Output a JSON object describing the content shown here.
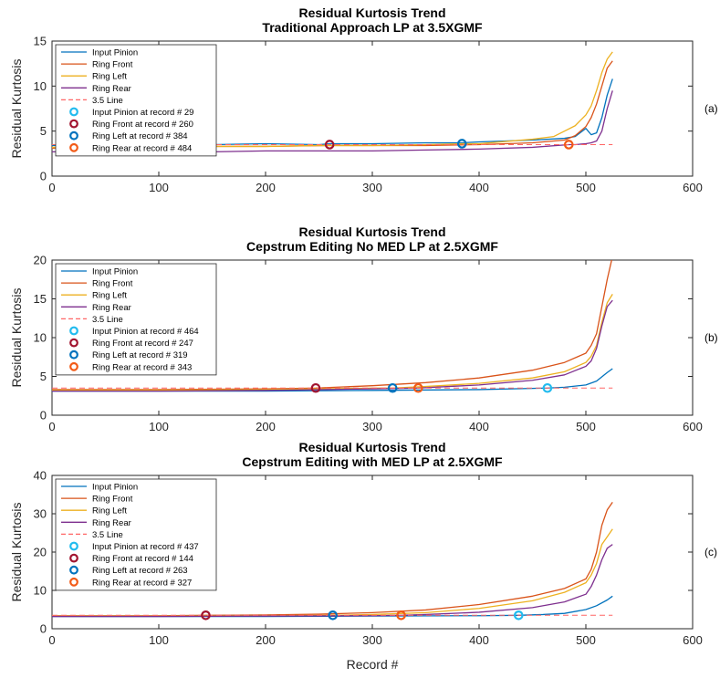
{
  "figure": {
    "xlabel": "Record #"
  },
  "chart_data": [
    {
      "type": "line",
      "panel_label": "(a)",
      "title": [
        "Residual Kurtosis Trend",
        "Traditional Approach LP at 3.5XGMF"
      ],
      "ylabel": "Residual Kurtosis",
      "xlim": [
        0,
        600
      ],
      "ylim": [
        0,
        15
      ],
      "xticks": [
        0,
        100,
        200,
        300,
        400,
        500,
        600
      ],
      "yticks": [
        0,
        5,
        10,
        15
      ],
      "grid": false,
      "legend_position": "top-left",
      "series": [
        {
          "name": "Input Pinion",
          "color": "#0072BD",
          "x": [
            0,
            29,
            60,
            100,
            150,
            200,
            250,
            260,
            300,
            350,
            384,
            400,
            450,
            480,
            490,
            500,
            505,
            510,
            515,
            520,
            525
          ],
          "y": [
            3.4,
            3.5,
            3.6,
            3.5,
            3.5,
            3.6,
            3.5,
            3.6,
            3.6,
            3.7,
            3.7,
            3.8,
            4.0,
            4.2,
            4.4,
            5.3,
            4.6,
            4.8,
            6.5,
            9.0,
            10.8
          ]
        },
        {
          "name": "Ring Front",
          "color": "#D95319",
          "x": [
            0,
            50,
            100,
            150,
            200,
            260,
            300,
            350,
            400,
            450,
            480,
            490,
            500,
            505,
            510,
            515,
            520,
            525
          ],
          "y": [
            3.1,
            3.2,
            3.2,
            3.3,
            3.3,
            3.4,
            3.4,
            3.4,
            3.5,
            3.7,
            4.0,
            4.5,
            5.5,
            6.5,
            8.0,
            10.0,
            12.0,
            12.8
          ]
        },
        {
          "name": "Ring Left",
          "color": "#EDB120",
          "x": [
            0,
            50,
            100,
            150,
            200,
            250,
            300,
            350,
            384,
            400,
            450,
            470,
            480,
            490,
            500,
            505,
            510,
            515,
            520,
            525
          ],
          "y": [
            3.2,
            3.3,
            3.2,
            3.3,
            3.3,
            3.4,
            3.4,
            3.5,
            3.6,
            3.6,
            4.1,
            4.4,
            5.0,
            5.6,
            6.8,
            7.8,
            9.5,
            11.5,
            13.0,
            13.8
          ]
        },
        {
          "name": "Ring Rear",
          "color": "#7E2F8E",
          "x": [
            0,
            50,
            100,
            150,
            200,
            250,
            300,
            350,
            400,
            450,
            484,
            490,
            500,
            505,
            510,
            515,
            520,
            525
          ],
          "y": [
            2.7,
            2.7,
            2.7,
            2.7,
            2.8,
            2.8,
            2.8,
            2.9,
            3.0,
            3.2,
            3.5,
            3.5,
            3.6,
            3.7,
            3.9,
            5.0,
            7.5,
            9.5
          ]
        },
        {
          "name": "3.5 Line",
          "color": "#FF6666",
          "dashed": true,
          "x": [
            0,
            525
          ],
          "y": [
            3.5,
            3.5
          ]
        }
      ],
      "markers": [
        {
          "name": "Input Pinion at record # 29",
          "color": "#22BBEE",
          "x": 29,
          "y": 3.5
        },
        {
          "name": "Ring Front at record # 260",
          "color": "#A2142F",
          "x": 260,
          "y": 3.5
        },
        {
          "name": "Ring Left at record # 384",
          "color": "#0072BD",
          "x": 384,
          "y": 3.6
        },
        {
          "name": "Ring Rear at record # 484",
          "color": "#F25A16",
          "x": 484,
          "y": 3.5
        }
      ]
    },
    {
      "type": "line",
      "panel_label": "(b)",
      "title": [
        "Residual Kurtosis Trend",
        "Cepstrum Editing No MED LP at 2.5XGMF"
      ],
      "ylabel": "Residual Kurtosis",
      "xlim": [
        0,
        600
      ],
      "ylim": [
        0,
        20
      ],
      "xticks": [
        0,
        100,
        200,
        300,
        400,
        500,
        600
      ],
      "yticks": [
        0,
        5,
        10,
        15,
        20
      ],
      "grid": false,
      "legend_position": "top-left",
      "series": [
        {
          "name": "Input Pinion",
          "color": "#0072BD",
          "x": [
            0,
            100,
            200,
            300,
            400,
            464,
            480,
            500,
            510,
            520,
            525
          ],
          "y": [
            3.1,
            3.1,
            3.1,
            3.2,
            3.3,
            3.5,
            3.6,
            3.9,
            4.4,
            5.5,
            6.0
          ]
        },
        {
          "name": "Ring Front",
          "color": "#D95319",
          "x": [
            0,
            100,
            200,
            247,
            300,
            350,
            400,
            450,
            480,
            500,
            505,
            510,
            515,
            520,
            525
          ],
          "y": [
            3.3,
            3.3,
            3.4,
            3.5,
            3.8,
            4.2,
            4.8,
            5.8,
            6.8,
            8.0,
            9.0,
            10.5,
            14.0,
            17.5,
            20.5
          ]
        },
        {
          "name": "Ring Left",
          "color": "#EDB120",
          "x": [
            0,
            100,
            200,
            300,
            319,
            350,
            400,
            450,
            480,
            500,
            505,
            510,
            515,
            520,
            525
          ],
          "y": [
            3.2,
            3.2,
            3.3,
            3.5,
            3.5,
            3.7,
            4.1,
            4.8,
            5.6,
            6.8,
            7.6,
            9.0,
            12.0,
            14.5,
            15.6
          ]
        },
        {
          "name": "Ring Rear",
          "color": "#7E2F8E",
          "x": [
            0,
            100,
            200,
            300,
            343,
            400,
            450,
            480,
            500,
            505,
            510,
            515,
            520,
            525
          ],
          "y": [
            3.1,
            3.1,
            3.2,
            3.4,
            3.5,
            3.9,
            4.5,
            5.2,
            6.3,
            7.0,
            8.6,
            11.5,
            14.0,
            14.8
          ]
        },
        {
          "name": "3.5 Line",
          "color": "#FF6666",
          "dashed": true,
          "x": [
            0,
            525
          ],
          "y": [
            3.5,
            3.5
          ]
        }
      ],
      "markers": [
        {
          "name": "Input Pinion at record # 464",
          "color": "#22BBEE",
          "x": 464,
          "y": 3.5
        },
        {
          "name": "Ring Front at record # 247",
          "color": "#A2142F",
          "x": 247,
          "y": 3.5
        },
        {
          "name": "Ring Left at record # 319",
          "color": "#0072BD",
          "x": 319,
          "y": 3.5
        },
        {
          "name": "Ring Rear at record # 343",
          "color": "#F25A16",
          "x": 343,
          "y": 3.5
        }
      ]
    },
    {
      "type": "line",
      "panel_label": "(c)",
      "title": [
        "Residual Kurtosis Trend",
        "Cepstrum Editing with MED LP at 2.5XGMF"
      ],
      "ylabel": "Residual Kurtosis",
      "xlim": [
        0,
        600
      ],
      "ylim": [
        0,
        40
      ],
      "xticks": [
        0,
        100,
        200,
        300,
        400,
        500,
        600
      ],
      "yticks": [
        0,
        10,
        20,
        30,
        40
      ],
      "grid": false,
      "legend_position": "top-left",
      "series": [
        {
          "name": "Input Pinion",
          "color": "#0072BD",
          "x": [
            0,
            100,
            200,
            300,
            400,
            437,
            460,
            480,
            500,
            510,
            520,
            525
          ],
          "y": [
            3.2,
            3.2,
            3.2,
            3.3,
            3.4,
            3.5,
            3.7,
            4.0,
            5.0,
            6.0,
            7.5,
            8.5
          ]
        },
        {
          "name": "Ring Front",
          "color": "#D95319",
          "x": [
            0,
            100,
            144,
            200,
            250,
            300,
            350,
            400,
            450,
            480,
            500,
            505,
            510,
            515,
            520,
            525
          ],
          "y": [
            3.4,
            3.4,
            3.5,
            3.6,
            3.8,
            4.2,
            4.9,
            6.3,
            8.5,
            10.5,
            13.0,
            15.5,
            20.0,
            27.0,
            31.0,
            33.0
          ]
        },
        {
          "name": "Ring Left",
          "color": "#EDB120",
          "x": [
            0,
            100,
            200,
            263,
            300,
            350,
            400,
            450,
            480,
            500,
            505,
            510,
            515,
            520,
            525
          ],
          "y": [
            3.3,
            3.3,
            3.4,
            3.5,
            3.7,
            4.2,
            5.3,
            7.3,
            9.5,
            12.0,
            14.0,
            17.0,
            22.0,
            24.0,
            26.0
          ]
        },
        {
          "name": "Ring Rear",
          "color": "#7E2F8E",
          "x": [
            0,
            100,
            200,
            300,
            327,
            350,
            400,
            450,
            480,
            500,
            505,
            510,
            515,
            520,
            525
          ],
          "y": [
            3.2,
            3.2,
            3.3,
            3.4,
            3.5,
            3.7,
            4.3,
            5.5,
            7.0,
            9.0,
            11.0,
            14.0,
            18.0,
            21.0,
            22.0
          ]
        },
        {
          "name": "3.5 Line",
          "color": "#FF6666",
          "dashed": true,
          "x": [
            0,
            525
          ],
          "y": [
            3.5,
            3.5
          ]
        }
      ],
      "markers": [
        {
          "name": "Input Pinion at record # 437",
          "color": "#22BBEE",
          "x": 437,
          "y": 3.5
        },
        {
          "name": "Ring Front at record # 144",
          "color": "#A2142F",
          "x": 144,
          "y": 3.5
        },
        {
          "name": "Ring Left at record # 263",
          "color": "#0072BD",
          "x": 263,
          "y": 3.5
        },
        {
          "name": "Ring Rear at record # 327",
          "color": "#F25A16",
          "x": 327,
          "y": 3.5
        }
      ]
    }
  ]
}
